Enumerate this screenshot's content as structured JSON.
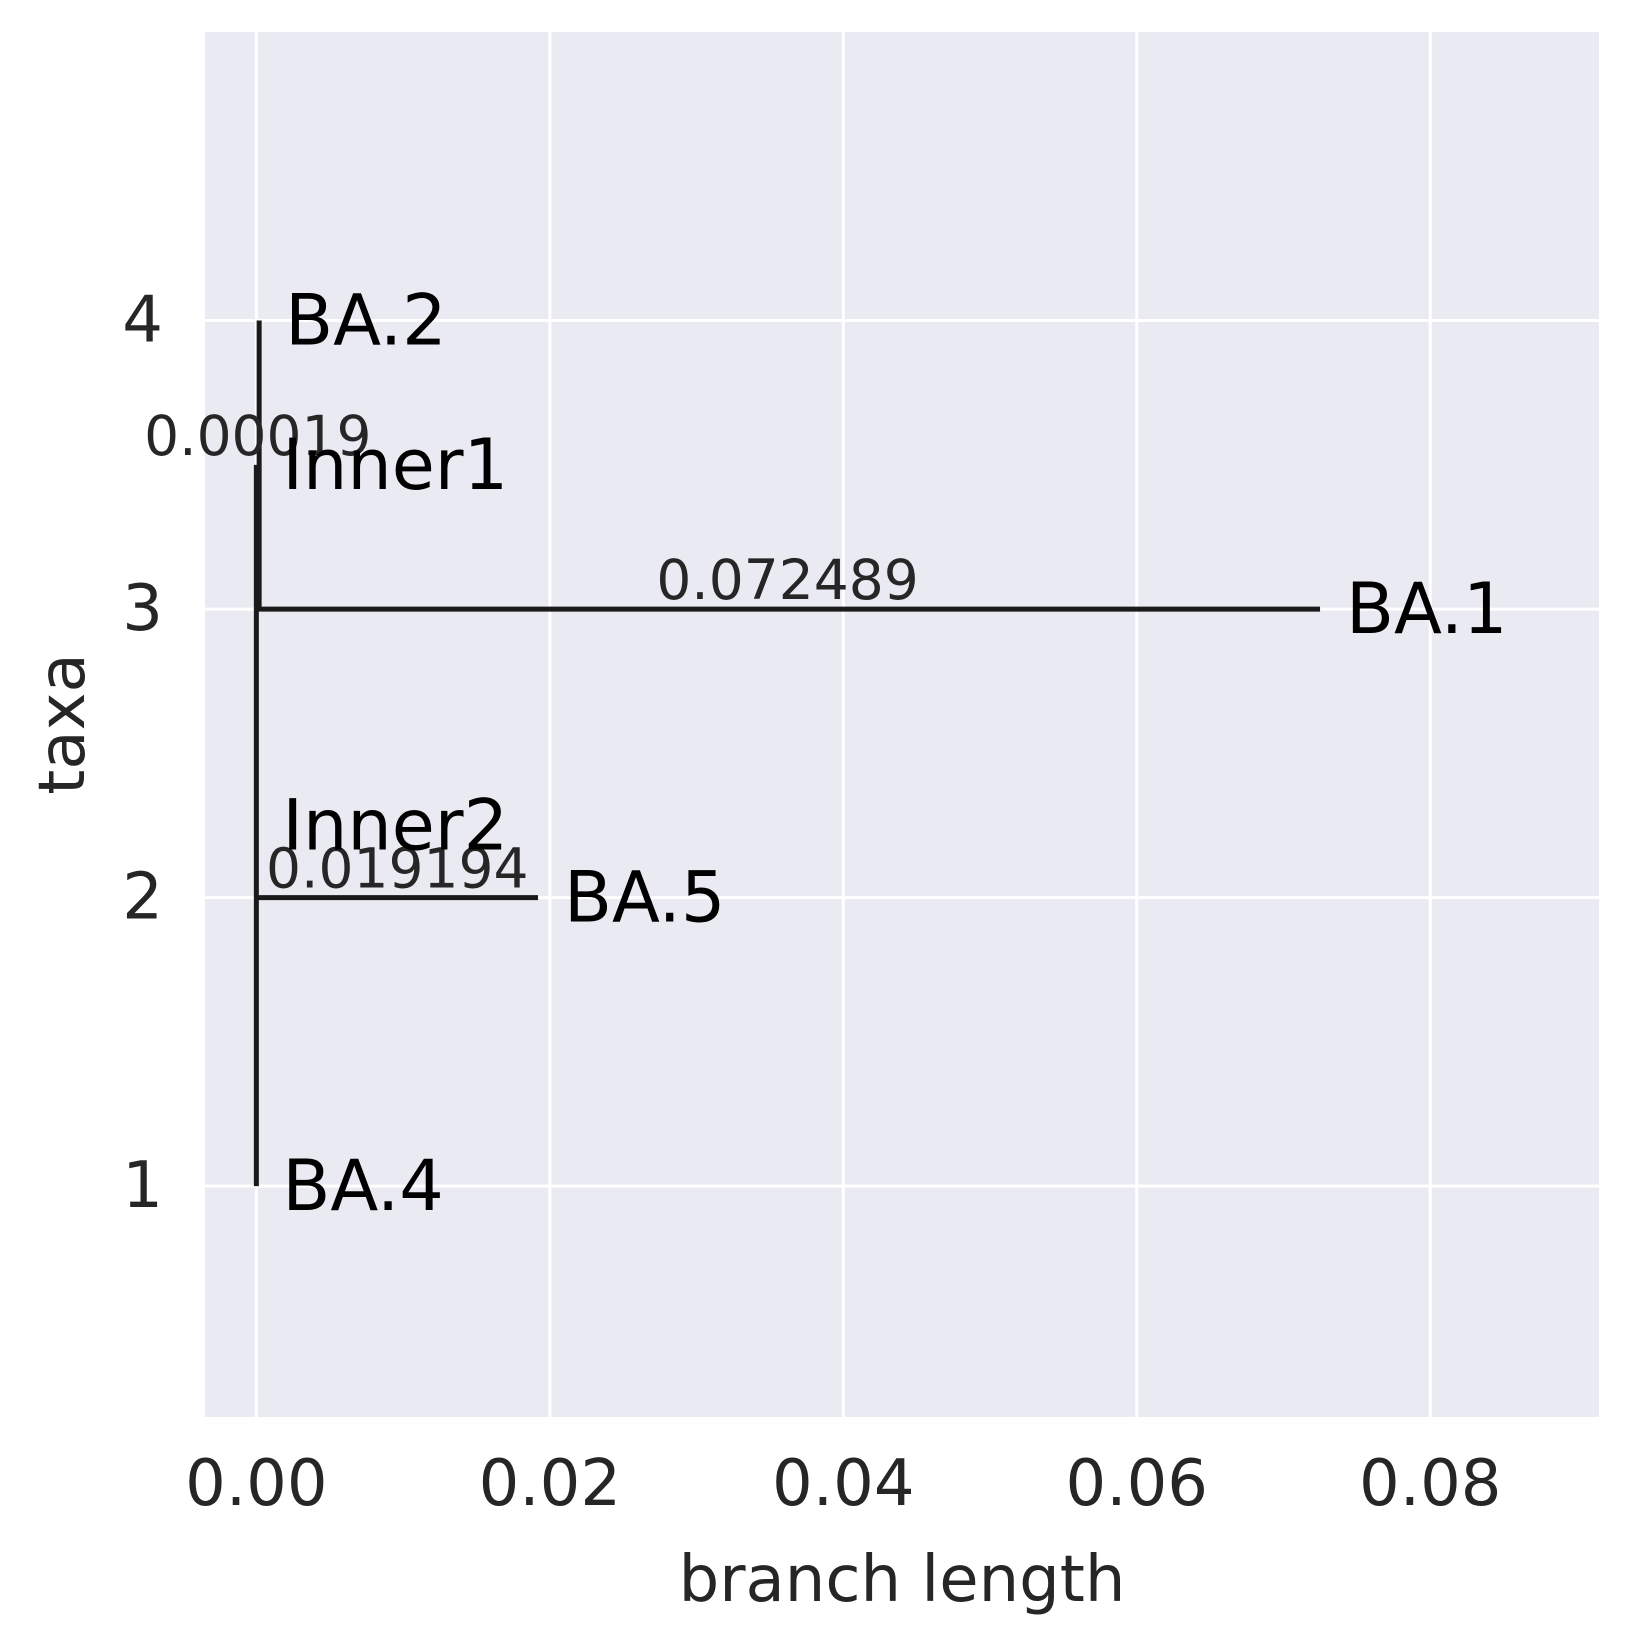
{
  "chart_data": {
    "type": "tree",
    "xlabel": "branch length",
    "ylabel": "taxa",
    "xlim": [
      -0.0035,
      0.0915
    ],
    "ylim": [
      5.0,
      0.2
    ],
    "x_ticks": [
      {
        "value": 0.0,
        "label": "0.00"
      },
      {
        "value": 0.02,
        "label": "0.02"
      },
      {
        "value": 0.04,
        "label": "0.04"
      },
      {
        "value": 0.06,
        "label": "0.06"
      },
      {
        "value": 0.08,
        "label": "0.08"
      }
    ],
    "y_ticks": [
      {
        "value": 1,
        "label": "1"
      },
      {
        "value": 2,
        "label": "2"
      },
      {
        "value": 3,
        "label": "3"
      },
      {
        "value": 4,
        "label": "4"
      }
    ],
    "grid": true,
    "colors": {
      "plot_background": "#eaeaf2",
      "grid": "#ffffff",
      "branch": "#1a1a1a"
    },
    "horizontal_branches": [
      {
        "x0": 0.0,
        "x1": 0.0,
        "y": 1
      },
      {
        "x0": 0.0,
        "x1": 0.019194,
        "y": 2
      },
      {
        "x0": 0.0,
        "x1": 0.072489,
        "y": 3
      },
      {
        "x0": 0.00019,
        "x1": 0.00019,
        "y": 4
      }
    ],
    "vertical_branches": [
      {
        "x": 0.0,
        "y0": 1,
        "y1": 3.5
      },
      {
        "x": 0.00019,
        "y0": 3,
        "y1": 4
      }
    ],
    "taxon_labels": [
      {
        "text": "BA.4",
        "x": 0.0,
        "y": 1
      },
      {
        "text": "BA.5",
        "x": 0.019194,
        "y": 2
      },
      {
        "text": "Inner2",
        "x": 0.0,
        "y": 2.25
      },
      {
        "text": "BA.1",
        "x": 0.072489,
        "y": 3
      },
      {
        "text": "Inner1",
        "x": 0.0,
        "y": 3.5
      },
      {
        "text": "BA.2",
        "x": 0.00019,
        "y": 4
      }
    ],
    "branch_labels": [
      {
        "text": "0.019194",
        "x": 0.0096,
        "y": 2
      },
      {
        "text": "0.072489",
        "x": 0.0362,
        "y": 3
      },
      {
        "text": "0.00019",
        "x": 0.0001,
        "y": 3.5
      }
    ]
  }
}
